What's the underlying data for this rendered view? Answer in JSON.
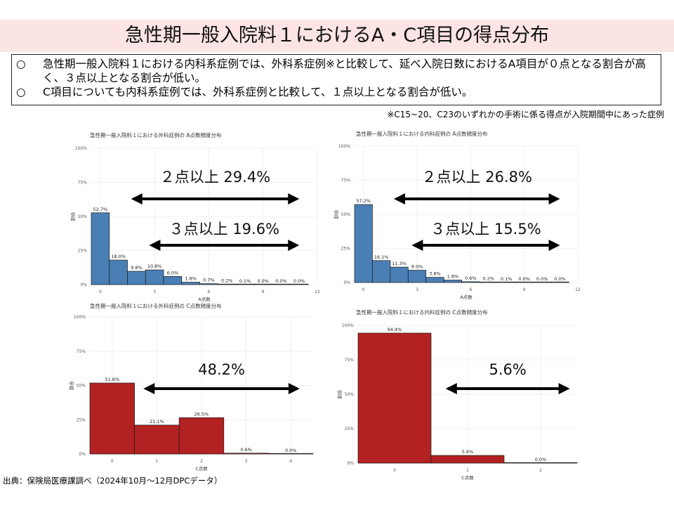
{
  "header": {
    "title": "急性期一般入院料１におけるA・C項目の得点分布"
  },
  "summary": {
    "bullets": [
      {
        "mark": "○",
        "text": "急性期一般入院料１における内科系症例では、外科系症例※と比較して、延べ入院日数におけるA項目が０点となる割合が高く、３点以上となる割合が低い。"
      },
      {
        "mark": "○",
        "text": "C項目についても内科系症例では、外科系症例と比較して、１点以上となる割合が低い。"
      }
    ]
  },
  "footnote": "※C15~20、C23のいずれかの手術に係る得点が入院期間中にあった症例",
  "source": "出典：保険局医療課調べ（2024年10月～12月DPCデータ）",
  "colors": {
    "blue_bar": "#4a7fb5",
    "red_bar": "#b22222",
    "title_band": "#fce4e4"
  },
  "chart_data": [
    {
      "type": "bar",
      "title": "急性期一般入院料１における外科症例の A点数頻度分布",
      "xlabel": "A点数",
      "ylabel": "割合",
      "categories": [
        0,
        1,
        2,
        3,
        4,
        5,
        6,
        7,
        8,
        9,
        10,
        11
      ],
      "values": [
        52.7,
        18.0,
        9.8,
        10.8,
        6.0,
        1.8,
        0.7,
        0.2,
        0.1,
        0.0,
        0.0,
        0.0
      ],
      "data_labels": [
        "52.7%",
        "18.0%",
        "9.8%",
        "10.8%",
        "6.0%",
        "1.8%",
        "0.7%",
        "0.2%",
        "0.1%",
        "0.0%",
        "0.0%",
        "0.0%"
      ],
      "x_ticks": [
        "0",
        "3",
        "6",
        "9",
        "12"
      ],
      "y_ticks": [
        "0%",
        "25%",
        "50%",
        "75%",
        "100%"
      ],
      "ylim": [
        0,
        100
      ],
      "xlim": [
        -0.5,
        12
      ],
      "color": "#4a7fb5",
      "annotations": [
        {
          "text": "２点以上 29.4%",
          "from_x": 2,
          "to_x": 11
        },
        {
          "text": "３点以上 19.6%",
          "from_x": 3,
          "to_x": 11
        }
      ]
    },
    {
      "type": "bar",
      "title": "急性期一般入院料１における内科症例の A点数頻度分布",
      "xlabel": "A点数",
      "ylabel": "割合",
      "categories": [
        0,
        1,
        2,
        3,
        4,
        5,
        6,
        7,
        8,
        9,
        10,
        11
      ],
      "values": [
        57.2,
        16.1,
        11.3,
        9.0,
        3.8,
        1.8,
        0.6,
        0.2,
        0.1,
        0.0,
        0.0,
        0.0
      ],
      "data_labels": [
        "57.2%",
        "16.1%",
        "11.3%",
        "9.0%",
        "3.8%",
        "1.8%",
        "0.6%",
        "0.2%",
        "0.1%",
        "0.0%",
        "0.0%",
        "0.0%"
      ],
      "x_ticks": [
        "0",
        "3",
        "6",
        "9",
        "12"
      ],
      "y_ticks": [
        "0%",
        "25%",
        "50%",
        "75%",
        "100%"
      ],
      "ylim": [
        0,
        100
      ],
      "xlim": [
        -0.5,
        12
      ],
      "color": "#4a7fb5",
      "annotations": [
        {
          "text": "２点以上 26.8%",
          "from_x": 2,
          "to_x": 11
        },
        {
          "text": "３点以上 15.5%",
          "from_x": 3,
          "to_x": 11
        }
      ]
    },
    {
      "type": "bar",
      "title": "急性期一般入院料１における外科症例の C点数頻度分布",
      "xlabel": "C点数",
      "ylabel": "割合",
      "categories": [
        0,
        1,
        2,
        3,
        4
      ],
      "values": [
        51.8,
        21.1,
        26.5,
        0.6,
        0.0
      ],
      "data_labels": [
        "51.8%",
        "21.1%",
        "26.5%",
        "0.6%",
        "0.0%"
      ],
      "x_ticks": [
        "0",
        "1",
        "2",
        "3",
        "4"
      ],
      "y_ticks": [
        "0%",
        "25%",
        "50%",
        "75%",
        "100%"
      ],
      "ylim": [
        0,
        100
      ],
      "xlim": [
        -0.5,
        4.5
      ],
      "color": "#b22222",
      "annotations": [
        {
          "text": "48.2%",
          "from_x": 1,
          "to_x": 4.2
        }
      ]
    },
    {
      "type": "bar",
      "title": "急性期一般入院料１における内科症例の C点数頻度分布",
      "xlabel": "C点数",
      "ylabel": "割合",
      "categories": [
        0,
        1,
        2
      ],
      "values": [
        94.4,
        5.6,
        0.0
      ],
      "data_labels": [
        "94.4%",
        "5.6%",
        "0.0%"
      ],
      "x_ticks": [
        "0",
        "1",
        "2"
      ],
      "y_ticks": [
        "0%",
        "25%",
        "50%",
        "75%",
        "100%"
      ],
      "ylim": [
        0,
        100
      ],
      "xlim": [
        -0.5,
        2.5
      ],
      "color": "#b22222",
      "annotations": [
        {
          "text": "5.6%",
          "from_x": 1,
          "to_x": 2.4
        }
      ]
    }
  ]
}
